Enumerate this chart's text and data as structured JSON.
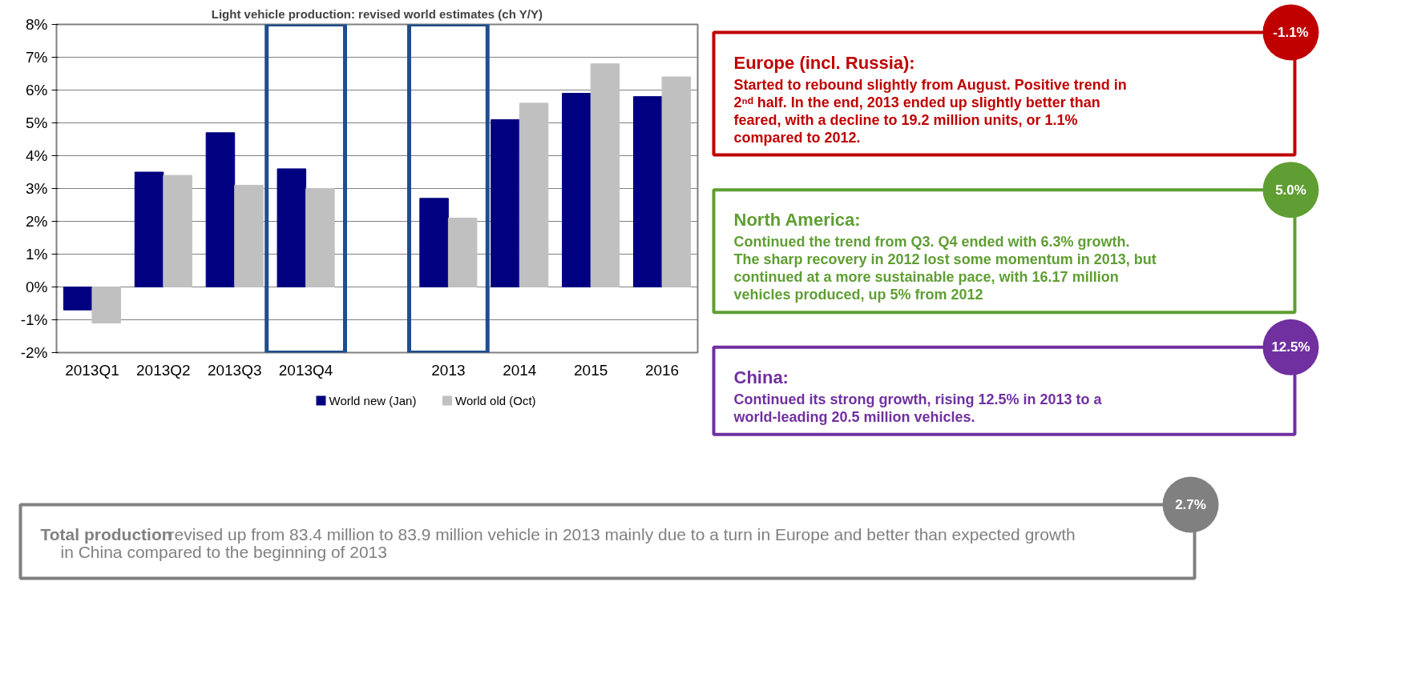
{
  "chart_data": [
    {
      "type": "bar",
      "title": "Light vehicle production: revised world estimates (ch Y/Y)",
      "categories": [
        "2013Q1",
        "2013Q2",
        "2013Q3",
        "2013Q4",
        null,
        "2013",
        "2014",
        "2015",
        "2016"
      ],
      "series": [
        {
          "name": "World new (Jan)",
          "color": "#000080",
          "values": [
            -0.7,
            3.5,
            4.7,
            3.6,
            null,
            2.7,
            5.1,
            5.9,
            5.8
          ]
        },
        {
          "name": "World old (Oct)",
          "color": "#c0c0c0",
          "values": [
            -1.1,
            3.4,
            3.1,
            3.0,
            null,
            2.1,
            5.6,
            6.8,
            6.4
          ]
        }
      ],
      "ylim": [
        -2,
        8
      ],
      "yticks": [
        {
          "value": -2,
          "label": "-2%"
        },
        {
          "value": -1,
          "label": "-1%"
        },
        {
          "value": 0,
          "label": "0%"
        },
        {
          "value": 1,
          "label": "1%"
        },
        {
          "value": 2,
          "label": "2%"
        },
        {
          "value": 3,
          "label": "3%"
        },
        {
          "value": 4,
          "label": "4%"
        },
        {
          "value": 5,
          "label": "5%"
        },
        {
          "value": 6,
          "label": "6%"
        },
        {
          "value": 7,
          "label": "7%"
        },
        {
          "value": 8,
          "label": "8%"
        }
      ],
      "grid": "y",
      "legend": "bottom"
    },
    {
      "type": "other",
      "annotations": [
        "-1.1%",
        "Europe (incl. Russia):",
        "Started to rebound slightly from August. Positive trend in 2ⁿᵈ half. In the end, 2013 ended up slightly better than feared, with a decline to 19.2 million units, or 1.1% compared to 2012.",
        "5.0%",
        "North America:",
        "Continued the trend from Q3.  Q4 ended with 6.3% growth. The sharp recovery in 2012 lost some momentum in 2013, but continued at a more sustainable pace, with 16.17 million vehicles produced, up 5% from 2012",
        "12.5%",
        "China:",
        "Continued its strong growth, rising 12.5% in 2013 to a world-leading 20.5 million vehicles.",
        "2.7%",
        "Total production",
        "revised up from 83.4 million to 83.9 million vehicle in 2013 mainly due to a turn in Europe and better than expected growth in China compared to the beginning of 2013"
      ]
    }
  ]
}
